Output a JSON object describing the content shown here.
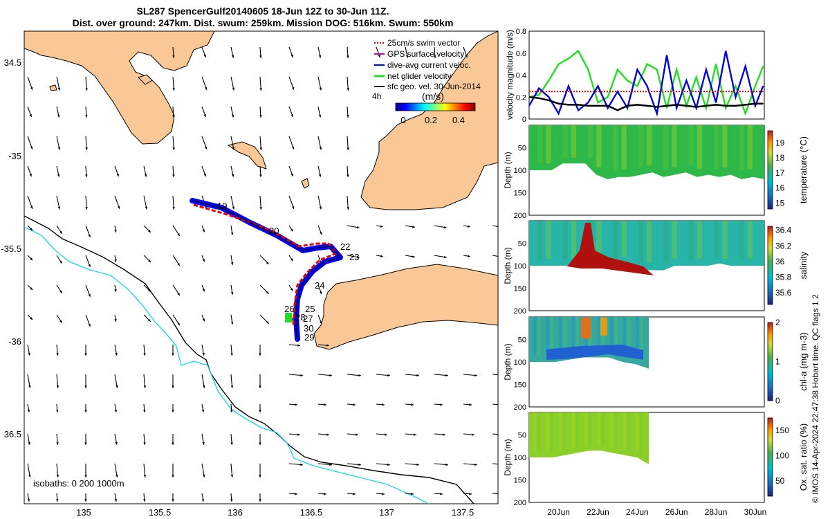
{
  "header": {
    "title_line1": "SL287 SpencerGulf20140605 18-Jun 12Z to 30-Jun 11Z.",
    "title_line2": "Dist. over ground: 247km. Dist. swum: 259km. Mission DOG: 516km. Swum: 550km"
  },
  "footer": {
    "credit": "© IMOS 14-Apr-2024 22:47:38 Hobart time. QC flags 1  2"
  },
  "map": {
    "x_ticks": [
      "135",
      "135.5",
      "136",
      "136.5",
      "137",
      "137.5"
    ],
    "y_ticks": [
      "34.5",
      "-35",
      "-35.5",
      "-36",
      "36.5"
    ],
    "isobaths_label": "isobaths: 0   200  1000m",
    "legend": {
      "items": [
        {
          "label": "25cm/s swim vector",
          "color": "#e00000"
        },
        {
          "label": "GPS surface velocity",
          "color": "#cc00cc"
        },
        {
          "label": "dive-avg current veloc.",
          "color": "#0000dd"
        },
        {
          "label": "net glider velocity",
          "color": "#22dd22"
        },
        {
          "label": "sfc geo. vel. 30-Jun-2014",
          "color": "#000000"
        }
      ],
      "hours_label": "4h",
      "colorbar_title": "(m/s)",
      "colorbar_ticks": [
        "0",
        "0.2",
        "0.4"
      ]
    },
    "day_labels": [
      "19",
      "20",
      "22",
      "23",
      "24",
      "25",
      "26",
      "27",
      "28",
      "29",
      "30"
    ]
  },
  "chart_data": [
    {
      "type": "line",
      "title": "",
      "ylabel": "velocity magnitude (m/s)",
      "ylim": [
        0,
        0.8
      ],
      "y_ticks": [
        "0",
        "0.2",
        "0.4",
        "0.6",
        "0.8"
      ],
      "xlim": [
        "18-Jun 12Z",
        "30-Jun 11Z"
      ],
      "series": [
        {
          "name": "net glider velocity",
          "color": "#22dd22",
          "x_days": [
            18.5,
            19.0,
            19.5,
            20.0,
            20.5,
            21.0,
            21.5,
            22.0,
            22.5,
            23.0,
            23.5,
            24.0,
            24.5,
            25.0,
            25.5,
            26.0,
            26.5,
            27.0,
            27.5,
            28.0,
            28.5,
            29.0,
            29.5,
            30.0,
            30.4
          ],
          "values": [
            0.2,
            0.22,
            0.35,
            0.5,
            0.55,
            0.62,
            0.45,
            0.15,
            0.2,
            0.45,
            0.35,
            0.3,
            0.5,
            0.45,
            0.1,
            0.45,
            0.12,
            0.38,
            0.1,
            0.5,
            0.1,
            0.3,
            0.05,
            0.3,
            0.48
          ]
        },
        {
          "name": "dive-avg current veloc.",
          "color": "#0000dd",
          "x_days": [
            18.5,
            19.0,
            19.5,
            20.0,
            20.5,
            21.0,
            21.5,
            22.0,
            22.5,
            23.0,
            23.5,
            24.0,
            24.5,
            25.0,
            25.5,
            26.0,
            26.5,
            27.0,
            27.5,
            28.0,
            28.5,
            29.0,
            29.5,
            30.0,
            30.4
          ],
          "values": [
            0.12,
            0.28,
            0.2,
            0.05,
            0.3,
            0.08,
            0.15,
            0.3,
            0.1,
            0.25,
            0.1,
            0.45,
            0.3,
            0.05,
            0.58,
            0.1,
            0.35,
            0.1,
            0.45,
            0.15,
            0.62,
            0.2,
            0.48,
            0.12,
            0.3
          ]
        },
        {
          "name": "sfc geo. vel.",
          "color": "#000000",
          "x_days": [
            18.5,
            19.0,
            19.5,
            20.0,
            20.5,
            21.0,
            21.5,
            22.0,
            22.5,
            23.0,
            23.5,
            24.0,
            24.5,
            25.0,
            25.5,
            26.0,
            26.5,
            27.0,
            27.5,
            28.0,
            28.5,
            29.0,
            29.5,
            30.0,
            30.4
          ],
          "values": [
            0.2,
            0.19,
            0.17,
            0.14,
            0.13,
            0.13,
            0.12,
            0.12,
            0.12,
            0.08,
            0.12,
            0.13,
            0.12,
            0.11,
            0.12,
            0.13,
            0.12,
            0.11,
            0.12,
            0.13,
            0.12,
            0.12,
            0.13,
            0.14,
            0.14
          ]
        },
        {
          "name": "25cm/s swim vector",
          "color": "#e00000",
          "x_days": [
            18.5,
            30.4
          ],
          "values": [
            0.25,
            0.25
          ]
        }
      ]
    },
    {
      "type": "heatmap",
      "title": "",
      "ylabel": "Depth (m)",
      "y_ticks": [
        "50",
        "100",
        "150",
        "200"
      ],
      "colorbar_label": "temperature (°C)",
      "colorbar_ticks": [
        "15",
        "16",
        "17",
        "18",
        "19"
      ],
      "colorbar_range": [
        14.6,
        19.8
      ],
      "bottom_depth_m": [
        100,
        100,
        100,
        85,
        85,
        85,
        110,
        120,
        115,
        115,
        110,
        105,
        115,
        110,
        105,
        115,
        110,
        115,
        110,
        120,
        115,
        120
      ]
    },
    {
      "type": "heatmap",
      "title": "",
      "ylabel": "Depth (m)",
      "y_ticks": [
        "50",
        "100",
        "150",
        "200"
      ],
      "colorbar_label": "salinity",
      "colorbar_ticks": [
        "35.6",
        "35.8",
        "36",
        "36.2",
        "36.4"
      ],
      "colorbar_range": [
        35.45,
        36.45
      ],
      "bottom_depth_m": [
        100,
        100,
        100,
        100,
        100,
        100,
        100,
        100,
        95,
        100,
        110,
        110,
        110,
        100,
        100,
        100,
        100,
        95,
        100,
        100,
        100,
        100
      ]
    },
    {
      "type": "heatmap",
      "title": "",
      "ylabel": "Depth (m)",
      "y_ticks": [
        "50",
        "100",
        "150",
        "200"
      ],
      "colorbar_label": "chl-a (mg m-3)",
      "colorbar_ticks": [
        "0",
        "1",
        "2"
      ],
      "colorbar_range": [
        0,
        2
      ],
      "bottom_depth_m": [
        100,
        100,
        100,
        95,
        90,
        90,
        90,
        100,
        105,
        115
      ]
    },
    {
      "type": "heatmap",
      "title": "",
      "ylabel": "Depth (m)",
      "y_ticks": [
        "50",
        "100",
        "150",
        "200"
      ],
      "colorbar_label": "Ox. sat. ratio (%)",
      "colorbar_ticks": [
        "50",
        "100",
        "150"
      ],
      "colorbar_range": [
        20,
        175
      ],
      "bottom_depth_m": [
        100,
        100,
        100,
        95,
        90,
        85,
        85,
        90,
        95,
        100,
        115
      ]
    }
  ],
  "time_axis": {
    "labels": [
      "20Jun",
      "22Jun",
      "24Jun",
      "26Jun",
      "28Jun",
      "30Jun"
    ],
    "start_day": 18.5,
    "end_day": 30.46
  }
}
